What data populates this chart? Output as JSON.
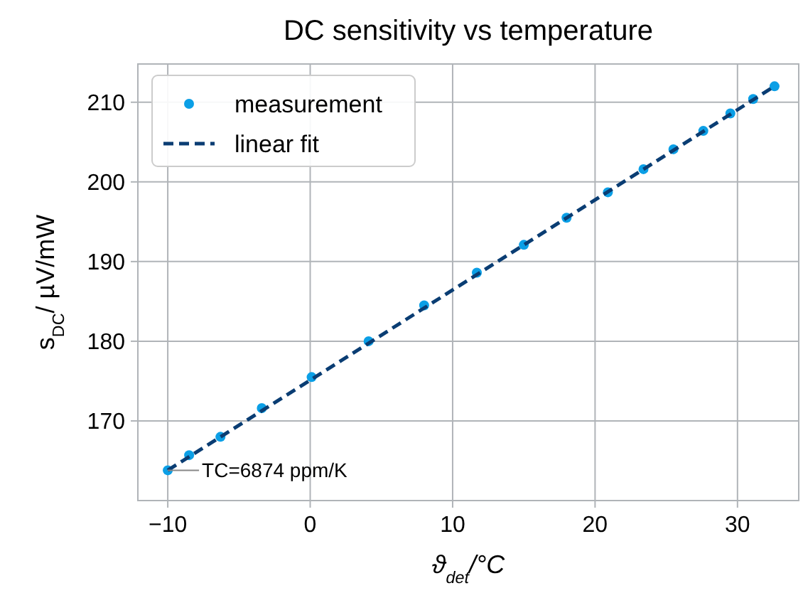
{
  "chart_data": {
    "type": "scatter",
    "title": "DC sensitivity vs temperature",
    "xlabel": "ϑ$_{det}$/°C",
    "ylabel": "s$_{DC}$/ µV/mW",
    "x": [
      -10,
      -8.5,
      -6.3,
      -3.4,
      0.1,
      4.1,
      8.0,
      11.7,
      15.0,
      18.0,
      20.9,
      23.4,
      25.5,
      27.6,
      29.5,
      31.1,
      32.6
    ],
    "series": [
      {
        "name": "measurement",
        "color": "#0b9fe6",
        "marker": "circle",
        "values": [
          163.8,
          165.7,
          168.0,
          171.6,
          175.5,
          180.0,
          184.5,
          188.6,
          192.1,
          195.5,
          198.7,
          201.6,
          204.1,
          206.4,
          208.6,
          210.4,
          212.0
        ]
      },
      {
        "name": "linear fit",
        "type": "line",
        "color": "#0a3d73",
        "line_style": "dashed",
        "marker": "none",
        "x": [
          -10,
          32.6
        ],
        "values": [
          163.8,
          212.0
        ]
      }
    ],
    "xlim": [
      -12.1,
      34.3
    ],
    "ylim": [
      160,
      214.8
    ],
    "xticks": [
      -10,
      0,
      10,
      20,
      30
    ],
    "yticks": [
      170,
      180,
      190,
      200,
      210
    ],
    "grid": true,
    "legend": "top left",
    "annotations": [
      {
        "text": "TC=6874 ppm/K",
        "x": -10,
        "y": 163.8
      }
    ]
  }
}
